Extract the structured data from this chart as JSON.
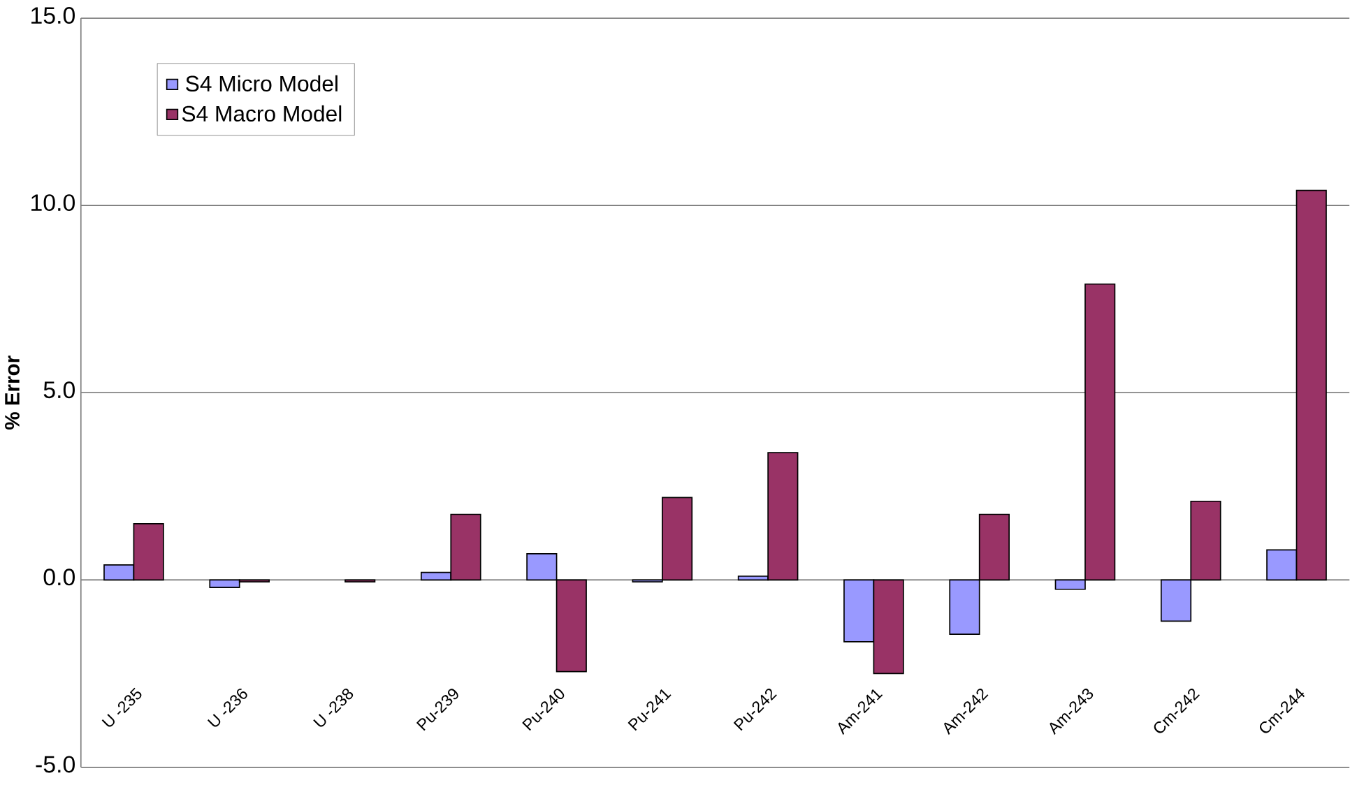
{
  "chart_data": {
    "type": "bar",
    "ylabel": "% Error",
    "categories": [
      "U -235",
      "U -236",
      "U -238",
      "Pu-239",
      "Pu-240",
      "Pu-241",
      "Pu-242",
      "Am-241",
      "Am-242",
      "Am-243",
      "Cm-242",
      "Cm-244"
    ],
    "series": [
      {
        "name": "S4 Micro Model",
        "color": "#9999ff",
        "values": [
          0.4,
          -0.2,
          null,
          0.2,
          0.7,
          -0.05,
          0.1,
          -1.65,
          -1.45,
          -0.25,
          -1.1,
          0.8
        ]
      },
      {
        "name": "S4 Macro Model",
        "color": "#993366",
        "values": [
          1.5,
          -0.05,
          -0.05,
          1.75,
          -2.45,
          2.2,
          3.4,
          -2.5,
          1.75,
          7.9,
          2.1,
          10.4
        ]
      }
    ],
    "ylim": [
      -5,
      15
    ],
    "yticks": [
      {
        "value": -5,
        "label": "-5.0"
      },
      {
        "value": 0,
        "label": "0.0"
      },
      {
        "value": 5,
        "label": "5.0"
      },
      {
        "value": 10,
        "label": "10.0"
      },
      {
        "value": 15,
        "label": "15.0"
      }
    ],
    "grid": "y",
    "legend": "top left"
  }
}
